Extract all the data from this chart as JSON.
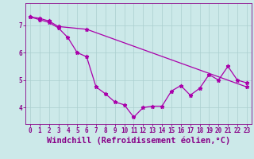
{
  "xlabel": "Windchill (Refroidissement éolien,°C)",
  "x_ticks": [
    0,
    1,
    2,
    3,
    4,
    5,
    6,
    7,
    8,
    9,
    10,
    11,
    12,
    13,
    14,
    15,
    16,
    17,
    18,
    19,
    20,
    21,
    22,
    23
  ],
  "y_ticks": [
    4,
    5,
    6,
    7
  ],
  "ylim": [
    3.4,
    7.8
  ],
  "xlim": [
    -0.5,
    23.5
  ],
  "line1_x": [
    0,
    1,
    2,
    3,
    4,
    5,
    6,
    7,
    8,
    9,
    10,
    11,
    12,
    13,
    14,
    15,
    16,
    17,
    18,
    19,
    20,
    21,
    22,
    23
  ],
  "line1_y": [
    7.3,
    7.2,
    7.1,
    6.9,
    6.55,
    6.0,
    5.85,
    4.75,
    4.5,
    4.2,
    4.1,
    3.65,
    4.0,
    4.05,
    4.05,
    4.6,
    4.8,
    4.45,
    4.7,
    5.2,
    5.0,
    5.5,
    5.0,
    4.9
  ],
  "line2_x": [
    0,
    1,
    2,
    3,
    6,
    23
  ],
  "line2_y": [
    7.3,
    7.25,
    7.15,
    6.95,
    6.85,
    4.75
  ],
  "line_color": "#aa00aa",
  "marker": "*",
  "markersize": 3.5,
  "linewidth": 0.9,
  "background_color": "#cce9e9",
  "grid_color": "#aacfcf",
  "tick_color": "#880088",
  "label_color": "#880088",
  "tick_fontsize": 5.5,
  "xlabel_fontsize": 7.5
}
